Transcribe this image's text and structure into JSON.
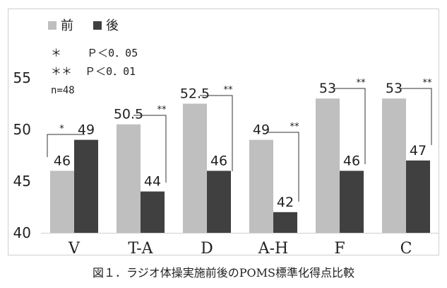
{
  "chart_data": {
    "type": "bar",
    "categories": [
      "V",
      "T-A",
      "D",
      "A-H",
      "F",
      "C"
    ],
    "series": [
      {
        "name": "前",
        "values": [
          46,
          50.5,
          52.5,
          49,
          53,
          53
        ],
        "color": "#bfbfbf"
      },
      {
        "name": "後",
        "values": [
          49,
          44,
          46,
          42,
          46,
          47
        ],
        "color": "#404040"
      }
    ],
    "ylim": [
      40,
      55
    ],
    "yticks": [
      "40",
      "45",
      "50",
      "55"
    ],
    "grid": false,
    "legend_position": "top-left",
    "significance": [
      "*",
      "**",
      "**",
      "**",
      "**",
      "**"
    ],
    "significance_legend": [
      {
        "mark": "＊",
        "text": "Ｐ＜0．05"
      },
      {
        "mark": "＊＊",
        "text": "Ｐ＜0．01"
      }
    ],
    "sample_size": "n=48"
  },
  "caption": "図１．ラジオ体操実施前後のPOMS標準化得点比較"
}
